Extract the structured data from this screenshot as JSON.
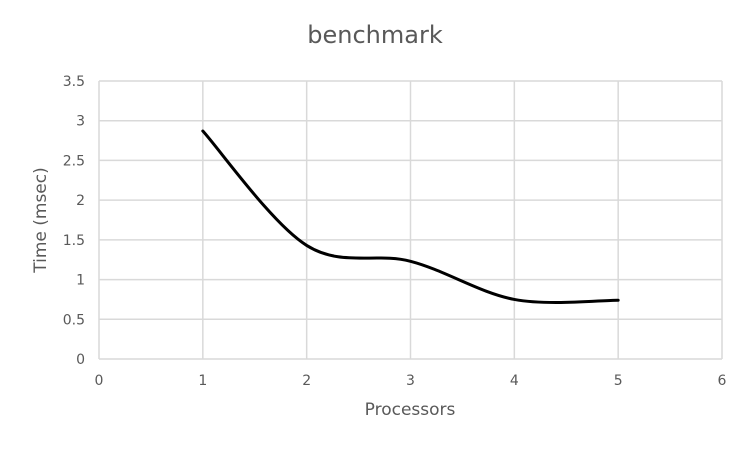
{
  "chart_data": {
    "type": "line",
    "title": "benchmark",
    "xlabel": "Processors",
    "ylabel": "Time (msec)",
    "xlim": [
      0,
      6
    ],
    "ylim": [
      0,
      3.5
    ],
    "x_ticks": [
      "0",
      "1",
      "2",
      "3",
      "4",
      "5",
      "6"
    ],
    "y_ticks": [
      "0",
      "0.5",
      "1",
      "1.5",
      "2",
      "2.5",
      "3",
      "3.5"
    ],
    "grid": true,
    "legend": "none",
    "smooth": true,
    "series": [
      {
        "x": [
          1,
          2,
          3,
          4,
          5
        ],
        "values": [
          2.87,
          1.43,
          1.23,
          0.75,
          0.74
        ],
        "color": "#000000"
      }
    ]
  }
}
